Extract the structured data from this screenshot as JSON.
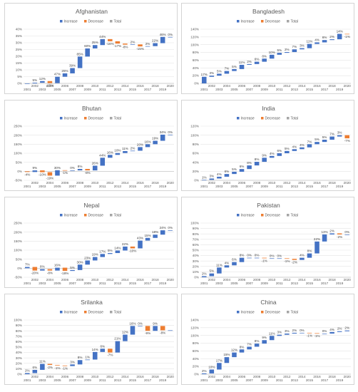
{
  "legend": {
    "increase": "Increase",
    "decrease": "Decrease",
    "total": "Total"
  },
  "colors": {
    "increase": "#4472c4",
    "decrease": "#ed7d31",
    "total": "#a5a5a5",
    "grid": "#e3e3e3",
    "axis": "#bfbfbf"
  },
  "chart_data": [
    {
      "type": "bar",
      "title": "Afghanistan",
      "categories": [
        "2001",
        "2002",
        "2003",
        "2004",
        "2005",
        "2006",
        "2007",
        "2008",
        "2009",
        "2010",
        "2011",
        "2012",
        "2013",
        "2014",
        "2015",
        "2016",
        "2017",
        "2018",
        "2019",
        "2020"
      ],
      "values": [
        0,
        5,
        12,
        -15,
        47,
        25,
        39,
        85,
        60,
        25,
        44,
        -16,
        -17,
        -8,
        2,
        -15,
        2,
        22,
        46,
        0
      ],
      "data_labels": [
        "",
        "5%",
        "12%",
        "-15%",
        "47%",
        "25%",
        "39%",
        "85%",
        "60%",
        "25%",
        "44%",
        "-16%",
        "-17%",
        "-8%",
        "2%",
        "-15%",
        "2%",
        "22%",
        "46%",
        "0%"
      ],
      "y_ticks": [
        "0%",
        "5%",
        "10%",
        "15%",
        "20%",
        "25%",
        "30%",
        "35%",
        "40%"
      ],
      "ylim": [
        0,
        400
      ],
      "legend_position": "top"
    },
    {
      "type": "bar",
      "title": "Bangladesh",
      "categories": [
        "2001",
        "2002",
        "2003",
        "2004",
        "2005",
        "2006",
        "2007",
        "2008",
        "2009",
        "2010",
        "2011",
        "2012",
        "2013",
        "2014",
        "2015",
        "2016",
        "2017",
        "2018",
        "2019",
        "2020"
      ],
      "values": [
        17,
        3,
        5,
        7,
        5,
        11,
        2,
        6,
        8,
        10,
        5,
        2,
        7,
        3,
        11,
        4,
        6,
        2,
        14,
        -1
      ],
      "data_labels": [
        "17%",
        "3%",
        "5%",
        "7%",
        "5%",
        "11%",
        "2%",
        "6%",
        "8%",
        "10%",
        "5%",
        "2%",
        "7%",
        "3%",
        "11%",
        "4%",
        "6%",
        "2%",
        "14%",
        "-1%"
      ],
      "y_ticks": [
        "0%",
        "20%",
        "40%",
        "60%",
        "80%",
        "100%",
        "120%",
        "140%"
      ],
      "ylim": [
        0,
        140
      ],
      "legend_position": "top"
    },
    {
      "type": "bar",
      "title": "Bhutan",
      "categories": [
        "2001",
        "2002",
        "2003",
        "2004",
        "2005",
        "2006",
        "2007",
        "2008",
        "2009",
        "2010",
        "2011",
        "2012",
        "2013",
        "2014",
        "2015",
        "2016",
        "2017",
        "2018",
        "2019",
        "2020"
      ],
      "values": [
        -4,
        9,
        -10,
        -19,
        30,
        -1,
        0,
        8,
        -8,
        26,
        44,
        16,
        10,
        11,
        2,
        20,
        16,
        19,
        34,
        0
      ],
      "data_labels": [
        "-4%",
        "9%",
        "-10%",
        "-19%",
        "30%",
        "-1%",
        "0%",
        "8%",
        "-8%",
        "26%",
        "44%",
        "16%",
        "10%",
        "11%",
        "2%",
        "20%",
        "16%",
        "19%",
        "34%",
        "0%"
      ],
      "y_ticks": [
        "-50%",
        "0%",
        "50%",
        "100%",
        "150%",
        "200%",
        "250%"
      ],
      "ylim": [
        -50,
        250
      ],
      "legend_position": "top"
    },
    {
      "type": "bar",
      "title": "India",
      "categories": [
        "2001",
        "2002",
        "2003",
        "2004",
        "2005",
        "2006",
        "2007",
        "2008",
        "2009",
        "2010",
        "2011",
        "2012",
        "2013",
        "2014",
        "2015",
        "2016",
        "2017",
        "2018",
        "2019",
        "2020"
      ],
      "values": [
        1,
        3,
        4,
        6,
        5,
        6,
        8,
        8,
        9,
        4,
        6,
        5,
        4,
        4,
        7,
        5,
        5,
        7,
        3,
        -7
      ],
      "data_labels": [
        "1%",
        "3%",
        "4%",
        "6%",
        "5%",
        "6%",
        "8%",
        "8%",
        "9%",
        "4%",
        "6%",
        "5%",
        "4%",
        "4%",
        "7%",
        "5%",
        "5%",
        "7%",
        "3%",
        "-7%"
      ],
      "y_ticks": [
        "0%",
        "20%",
        "40%",
        "60%",
        "80%",
        "100%",
        "120%"
      ],
      "ylim": [
        0,
        120
      ],
      "legend_position": "top"
    },
    {
      "type": "bar",
      "title": "Nepal",
      "categories": [
        "2001",
        "2002",
        "2003",
        "2004",
        "2005",
        "2006",
        "2007",
        "2008",
        "2009",
        "2010",
        "2011",
        "2012",
        "2013",
        "2014",
        "2015",
        "2016",
        "2017",
        "2018",
        "2019",
        "2020"
      ],
      "values": [
        7,
        -20,
        8,
        -8,
        16,
        -18,
        5,
        30,
        23,
        19,
        17,
        5,
        14,
        22,
        -10,
        43,
        15,
        18,
        24,
        0
      ],
      "data_labels": [
        "7%",
        "-20%",
        "8%",
        "-8%",
        "16%",
        "-18%",
        "5%",
        "30%",
        "23%",
        "19%",
        "17%",
        "5%",
        "14%",
        "22%",
        "-10%",
        "43%",
        "15%",
        "18%",
        "24%",
        "0%"
      ],
      "y_ticks": [
        "-50%",
        "0%",
        "50%",
        "100%",
        "150%",
        "200%",
        "250%"
      ],
      "ylim": [
        -50,
        250
      ],
      "legend_position": "top"
    },
    {
      "type": "bar",
      "title": "Pakistan",
      "categories": [
        "2001",
        "2002",
        "2003",
        "2004",
        "2005",
        "2006",
        "2007",
        "2008",
        "2009",
        "2010",
        "2011",
        "2012",
        "2013",
        "2014",
        "2015",
        "2016",
        "2017",
        "2018",
        "2019",
        "2020"
      ],
      "values": [
        2,
        5,
        11,
        4,
        6,
        8,
        0,
        0,
        -1,
        0,
        0,
        -1,
        -2,
        4,
        8,
        22,
        13,
        2,
        -2,
        0
      ],
      "data_labels": [
        "2%",
        "5%",
        "11%",
        "4%",
        "6%",
        "8%",
        "0%",
        "0%",
        "-1%",
        "0%",
        "0%",
        "-1%",
        "-2%",
        "4%",
        "8%",
        "22%",
        "13%",
        "2%",
        "-2%",
        "0%"
      ],
      "y_ticks": [
        "0%",
        "10%",
        "20%",
        "30%",
        "40%",
        "50%",
        "60%",
        "70%",
        "80%",
        "90%",
        "100%"
      ],
      "ylim": [
        0,
        100
      ],
      "legend_position": "top"
    },
    {
      "type": "bar",
      "title": "Srilanka",
      "categories": [
        "2001",
        "2002",
        "2003",
        "2004",
        "2005",
        "2006",
        "2007",
        "2008",
        "2009",
        "2010",
        "2011",
        "2012",
        "2013",
        "2014",
        "2015",
        "2016",
        "2017",
        "2018",
        "2019",
        "2020"
      ],
      "values": [
        2,
        6,
        11,
        -2,
        -1,
        -1,
        3,
        8,
        1,
        14,
        6,
        -7,
        21,
        12,
        16,
        0,
        -9,
        9,
        -8,
        0
      ],
      "data_labels": [
        "2%",
        "6%",
        "11%",
        "-2%",
        "-1%",
        "-1%",
        "3%",
        "8%",
        "1%",
        "14%",
        "6%",
        "-7%",
        "21%",
        "12%",
        "16%",
        "0%",
        "-9%",
        "9%",
        "-8%",
        ""
      ],
      "y_ticks": [
        "0%",
        "10%",
        "20%",
        "30%",
        "40%",
        "50%",
        "60%",
        "70%",
        "80%",
        "90%",
        "100%"
      ],
      "ylim": [
        0,
        100
      ],
      "legend_position": "top"
    },
    {
      "type": "bar",
      "title": "China",
      "categories": [
        "2001",
        "2002",
        "2003",
        "2004",
        "2005",
        "2006",
        "2007",
        "2008",
        "2009",
        "2010",
        "2011",
        "2012",
        "2013",
        "2014",
        "2015",
        "2016",
        "2017",
        "2018",
        "2019",
        "2020"
      ],
      "values": [
        2,
        10,
        17,
        15,
        12,
        8,
        7,
        8,
        9,
        11,
        3,
        3,
        2,
        0,
        -1,
        -1,
        0,
        4,
        2,
        2
      ],
      "data_labels": [
        "2%",
        "10%",
        "17%",
        "15%",
        "12%",
        "8%",
        "7%",
        "8%",
        "9%",
        "11%",
        "3%",
        "3%",
        "2%",
        "0%",
        "-1%",
        "-1%",
        "0%",
        "4%",
        "2%",
        "2%"
      ],
      "y_ticks": [
        "0%",
        "20%",
        "40%",
        "60%",
        "80%",
        "100%",
        "120%",
        "140%"
      ],
      "ylim": [
        0,
        140
      ],
      "legend_position": "top"
    }
  ]
}
